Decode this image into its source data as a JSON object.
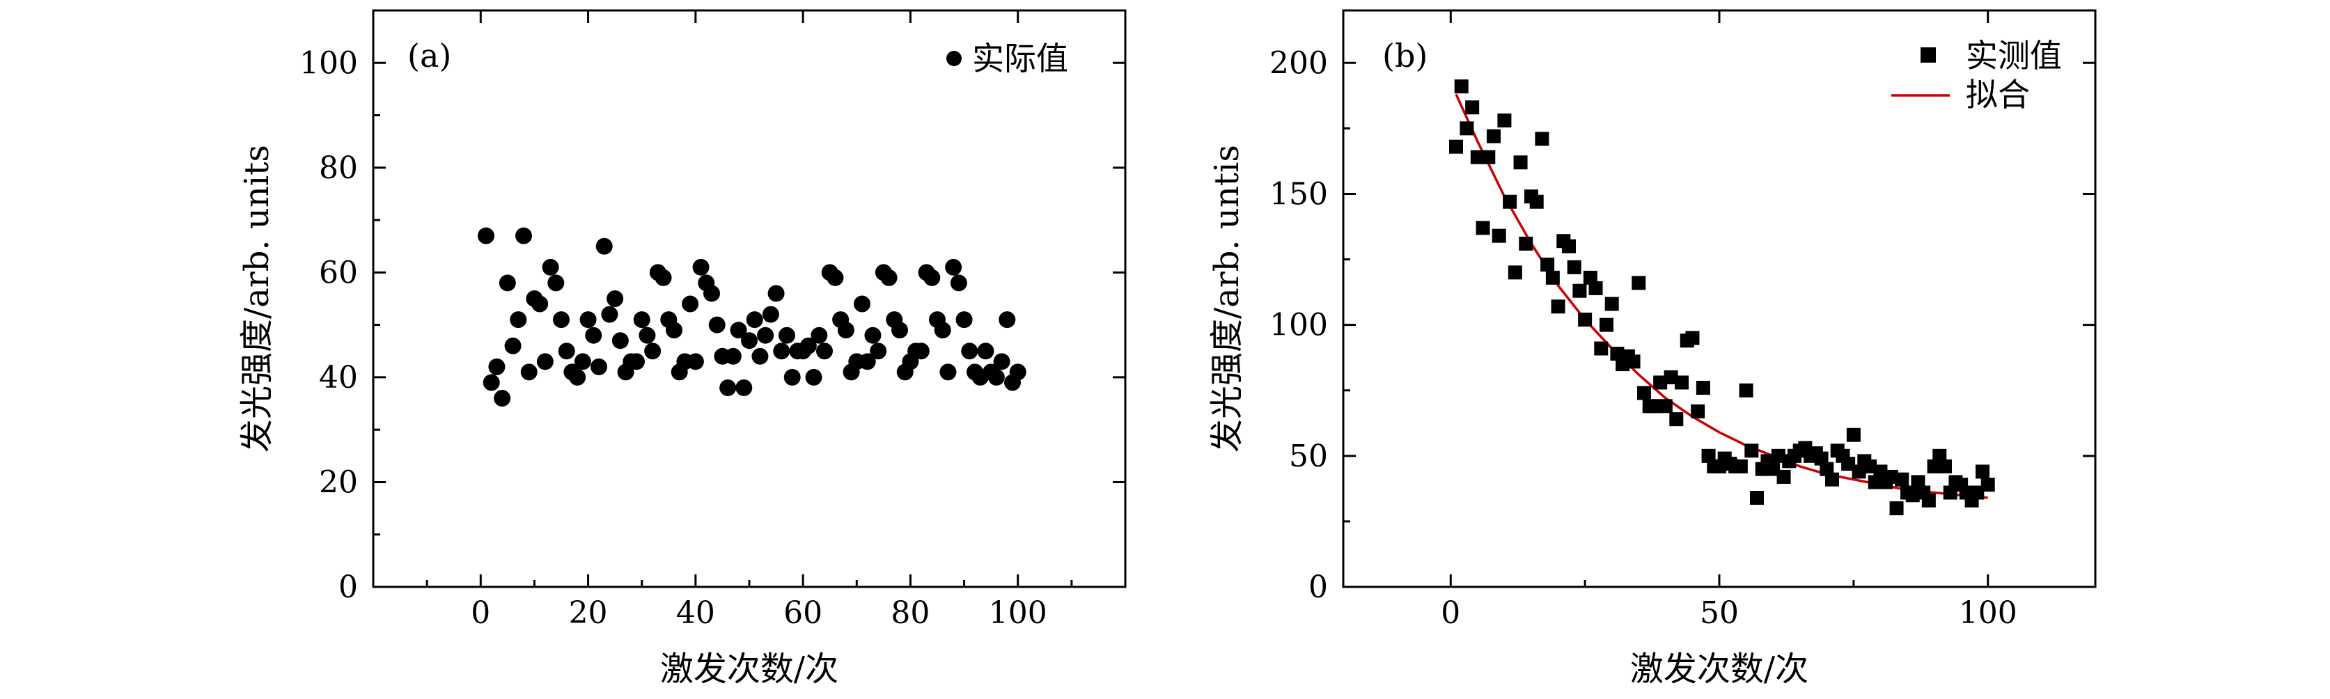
{
  "chart_data": [
    {
      "type": "scatter",
      "panel_label": "(a)",
      "xlabel": "激发次数/次",
      "ylabel": "发光强度/arb. units",
      "xlim": [
        -20,
        120
      ],
      "ylim": [
        0,
        110
      ],
      "xticks": [
        0,
        20,
        40,
        60,
        80,
        100
      ],
      "yticks": [
        0,
        20,
        40,
        60,
        80,
        100
      ],
      "x_tick_labels": [
        "0",
        "20",
        "40",
        "60",
        "80",
        "100"
      ],
      "y_tick_labels": [
        "0",
        "20",
        "40",
        "60",
        "80",
        "100"
      ],
      "grid": false,
      "legend": {
        "position": "top-right",
        "entries": [
          "实际值"
        ]
      },
      "series": [
        {
          "name": "实际值",
          "marker": "circle",
          "color": "#000000",
          "x": [
            1,
            2,
            3,
            4,
            5,
            6,
            7,
            8,
            9,
            10,
            11,
            12,
            13,
            14,
            15,
            16,
            17,
            18,
            19,
            20,
            21,
            22,
            23,
            24,
            25,
            26,
            27,
            28,
            29,
            30,
            31,
            32,
            33,
            34,
            35,
            36,
            37,
            38,
            39,
            40,
            41,
            42,
            43,
            44,
            45,
            46,
            47,
            48,
            49,
            50,
            51,
            52,
            53,
            54,
            55,
            56,
            57,
            58,
            59,
            60,
            61,
            62,
            63,
            64,
            65,
            66,
            67,
            68,
            69,
            70,
            71,
            72,
            73,
            74,
            75,
            76,
            77,
            78,
            79,
            80,
            81,
            82,
            83,
            84,
            85,
            86,
            87,
            88,
            89,
            90,
            91,
            92,
            93,
            94,
            95,
            96,
            97,
            98,
            99,
            100
          ],
          "y": [
            67,
            39,
            42,
            36,
            58,
            46,
            51,
            67,
            41,
            55,
            54,
            43,
            61,
            58,
            51,
            45,
            41,
            40,
            43,
            51,
            48,
            42,
            65,
            52,
            55,
            47,
            41,
            43,
            43,
            51,
            48,
            45,
            60,
            59,
            51,
            49,
            41,
            43,
            54,
            43,
            61,
            58,
            56,
            50,
            44,
            38,
            44,
            49,
            38,
            47,
            51,
            44,
            48,
            52,
            56,
            45,
            48,
            40,
            45,
            45,
            46,
            40,
            48,
            45,
            60,
            59,
            51,
            49,
            41,
            43,
            54,
            43,
            48,
            45,
            60,
            59,
            51,
            49,
            41,
            43,
            45,
            45,
            60,
            59,
            51,
            49,
            41,
            61,
            58,
            51,
            45,
            41,
            40,
            45,
            41,
            40,
            43,
            51,
            39,
            41
          ]
        }
      ]
    },
    {
      "type": "scatter",
      "panel_label": "(b)",
      "xlabel": "激发次数/次",
      "ylabel": "发光强度/arb. untis",
      "xlim": [
        -20,
        120
      ],
      "ylim": [
        0,
        220
      ],
      "xticks": [
        0,
        50,
        100
      ],
      "yticks": [
        0,
        50,
        100,
        150,
        200
      ],
      "x_tick_labels": [
        "0",
        "50",
        "100"
      ],
      "y_tick_labels": [
        "0",
        "50",
        "100",
        "150",
        "200"
      ],
      "grid": false,
      "legend": {
        "position": "top-right",
        "entries": [
          "实测值",
          "拟合"
        ]
      },
      "series": [
        {
          "name": "实测值",
          "marker": "square",
          "color": "#000000",
          "x": [
            1,
            2,
            3,
            4,
            5,
            6,
            7,
            8,
            9,
            10,
            11,
            12,
            13,
            14,
            15,
            16,
            17,
            18,
            19,
            20,
            21,
            22,
            23,
            24,
            25,
            26,
            27,
            28,
            29,
            30,
            31,
            32,
            33,
            34,
            35,
            36,
            37,
            38,
            39,
            40,
            41,
            42,
            43,
            44,
            45,
            46,
            47,
            48,
            49,
            50,
            51,
            52,
            53,
            54,
            55,
            56,
            57,
            58,
            59,
            60,
            61,
            62,
            63,
            64,
            65,
            66,
            67,
            68,
            69,
            70,
            71,
            72,
            73,
            74,
            75,
            76,
            77,
            78,
            79,
            80,
            81,
            82,
            83,
            84,
            85,
            86,
            87,
            88,
            89,
            90,
            91,
            92,
            93,
            94,
            95,
            96,
            97,
            98,
            99,
            100
          ],
          "y": [
            168,
            191,
            175,
            183,
            164,
            137,
            164,
            172,
            134,
            178,
            147,
            120,
            162,
            131,
            149,
            147,
            171,
            123,
            118,
            107,
            132,
            130,
            122,
            113,
            102,
            118,
            114,
            91,
            100,
            108,
            89,
            85,
            88,
            86,
            116,
            74,
            69,
            69,
            78,
            69,
            80,
            64,
            78,
            94,
            95,
            67,
            76,
            50,
            46,
            46,
            49,
            47,
            46,
            46,
            75,
            52,
            34,
            45,
            48,
            45,
            50,
            42,
            48,
            50,
            52,
            53,
            50,
            51,
            49,
            45,
            41,
            52,
            50,
            47,
            58,
            44,
            48,
            46,
            40,
            44,
            40,
            42,
            30,
            41,
            36,
            35,
            40,
            36,
            33,
            46,
            50,
            46,
            36,
            40,
            39,
            36,
            33,
            36,
            44,
            39
          ]
        },
        {
          "name": "拟合",
          "type": "line",
          "color": "#cc0000",
          "x": [
            1,
            5,
            10,
            15,
            20,
            25,
            30,
            35,
            40,
            45,
            50,
            55,
            60,
            65,
            70,
            75,
            80,
            85,
            90,
            95,
            100
          ],
          "y": [
            188,
            170,
            149,
            131,
            115,
            102,
            91,
            81,
            72,
            65,
            59,
            54,
            50,
            46,
            43,
            41,
            39,
            37,
            36,
            35,
            34
          ]
        }
      ]
    }
  ]
}
